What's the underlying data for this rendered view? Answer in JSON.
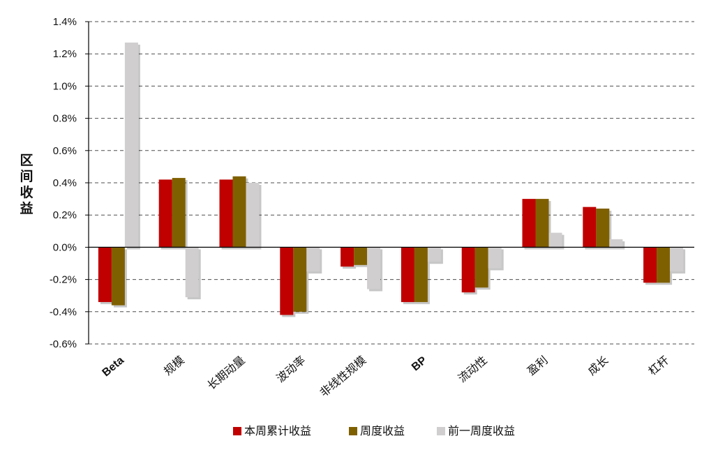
{
  "chart_data": {
    "type": "bar",
    "ylabel": "区间收益",
    "ylim": [
      -0.6,
      1.4
    ],
    "yticks": [
      "1.4%",
      "1.2%",
      "1.0%",
      "0.8%",
      "0.6%",
      "0.4%",
      "0.2%",
      "0.0%",
      "-0.2%",
      "-0.4%",
      "-0.6%"
    ],
    "categories": [
      "Beta",
      "规模",
      "长期动量",
      "波动率",
      "非线性规模",
      "BP",
      "流动性",
      "盈利",
      "成长",
      "杠杆"
    ],
    "series": [
      {
        "name": "本周累计收益",
        "color": "#C00000",
        "values": [
          -0.34,
          0.42,
          0.42,
          -0.42,
          -0.12,
          -0.34,
          -0.28,
          0.3,
          0.25,
          -0.22
        ]
      },
      {
        "name": "周度收益",
        "color": "#7F6000",
        "values": [
          -0.36,
          0.43,
          0.44,
          -0.4,
          -0.11,
          -0.34,
          -0.25,
          0.3,
          0.24,
          -0.22
        ]
      },
      {
        "name": "前一周度收益",
        "color": "#D0CECE",
        "values": [
          1.27,
          -0.31,
          0.4,
          -0.15,
          -0.26,
          -0.09,
          -0.13,
          0.09,
          0.05,
          -0.15
        ]
      }
    ],
    "grid": true,
    "legend_position": "bottom"
  }
}
